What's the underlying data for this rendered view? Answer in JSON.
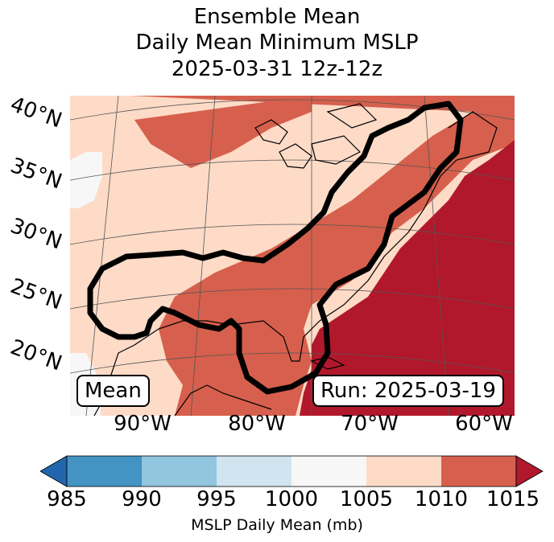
{
  "title": {
    "line1": "Ensemble Mean",
    "line2": "Daily Mean Minimum MSLP",
    "line3": "2025-03-31 12z-12z"
  },
  "map": {
    "lat_labels": [
      "40°N",
      "35°N",
      "30°N",
      "25°N",
      "20°N"
    ],
    "lon_labels": [
      "90°W",
      "80°W",
      "70°W",
      "60°W"
    ],
    "mean_label": "Mean",
    "run_label": "Run: 2025-03-19",
    "region": "Eastern United States and western Atlantic",
    "contour_color": "#000000"
  },
  "colorbar": {
    "ticks": [
      "985",
      "990",
      "995",
      "1000",
      "1005",
      "1010",
      "1015"
    ],
    "label": "MSLP Daily Mean (mb)",
    "colors": [
      "#2166ac",
      "#4393c3",
      "#92c5de",
      "#d1e5f0",
      "#f7f7f7",
      "#fddbc7",
      "#d6604d",
      "#b2182b"
    ]
  },
  "chart_data": {
    "type": "heatmap",
    "title": "Ensemble Mean Daily Mean Minimum MSLP 2025-03-31 12z-12z",
    "variable": "MSLP Daily Mean (mb)",
    "bins": [
      {
        "range": "<985",
        "color": "#2166ac"
      },
      {
        "range": "985-990",
        "color": "#4393c3"
      },
      {
        "range": "990-995",
        "color": "#92c5de"
      },
      {
        "range": "995-1000",
        "color": "#d1e5f0"
      },
      {
        "range": "1000-1005",
        "color": "#f7f7f7"
      },
      {
        "range": "1005-1010",
        "color": "#fddbc7"
      },
      {
        "range": "1010-1015",
        "color": "#d6604d"
      },
      {
        "range": ">1015",
        "color": "#b2182b"
      }
    ],
    "lon_range": [
      -97,
      -58
    ],
    "lat_range": [
      15,
      42
    ],
    "regions": [
      {
        "area": "Western Atlantic",
        "value_range": ">1015"
      },
      {
        "area": "Gulf of Mexico / Southeast US coast",
        "value_range": "1010-1015"
      },
      {
        "area": "Central and eastern US interior",
        "value_range": "1005-1010"
      },
      {
        "area": "Western Gulf / Mexico",
        "value_range": "1000-1005"
      }
    ]
  }
}
